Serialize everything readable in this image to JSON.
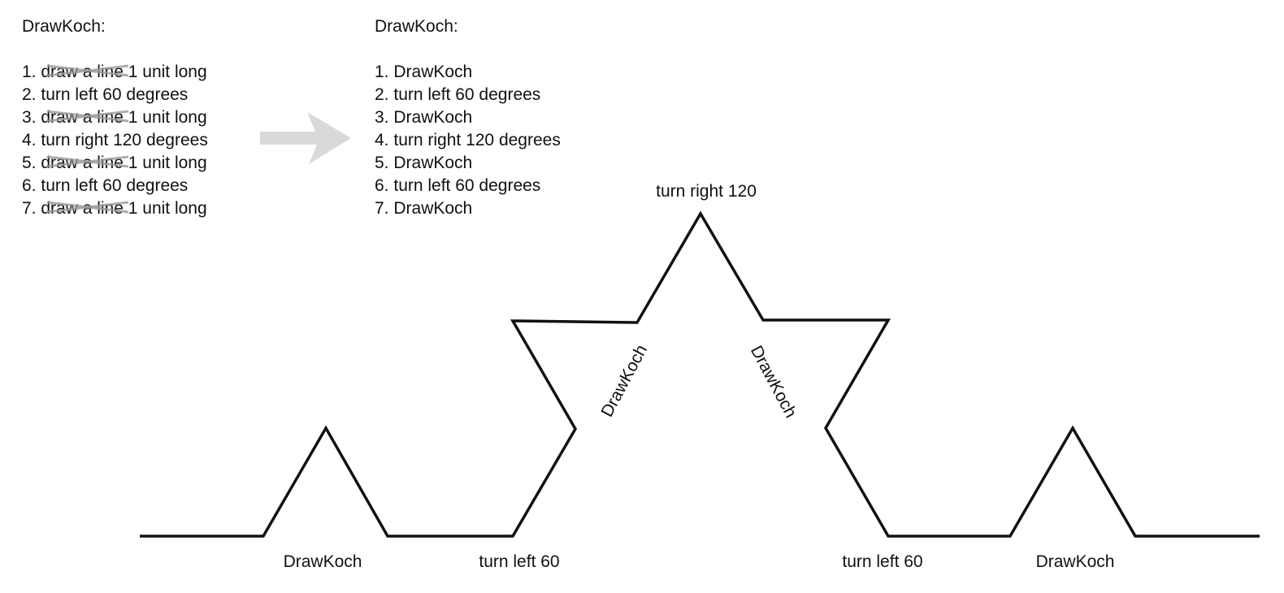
{
  "left_panel": {
    "heading": "DrawKoch:",
    "steps": [
      {
        "num": "1.",
        "text": "draw a line 1 unit long",
        "struck": true
      },
      {
        "num": "2.",
        "text": "turn left 60 degrees",
        "struck": false
      },
      {
        "num": "3.",
        "text": "draw a line 1 unit long",
        "struck": true
      },
      {
        "num": "4.",
        "text": "turn right 120 degrees",
        "struck": false
      },
      {
        "num": "5.",
        "text": "draw a line 1 unit long",
        "struck": true
      },
      {
        "num": "6.",
        "text": "turn left 60 degrees",
        "struck": false
      },
      {
        "num": "7.",
        "text": "draw a line 1 unit long",
        "struck": true
      }
    ]
  },
  "arrow": {
    "icon": "right-arrow-icon",
    "color": "#d9d9d9"
  },
  "right_panel": {
    "heading": "DrawKoch:",
    "steps": [
      {
        "num": "1.",
        "text": "DrawKoch"
      },
      {
        "num": "2.",
        "text": "turn left 60 degrees"
      },
      {
        "num": "3.",
        "text": "DrawKoch"
      },
      {
        "num": "4.",
        "text": "turn right 120 degrees"
      },
      {
        "num": "5.",
        "text": "DrawKoch"
      },
      {
        "num": "6.",
        "text": "turn left 60 degrees"
      },
      {
        "num": "7.",
        "text": "DrawKoch"
      }
    ]
  },
  "diagram": {
    "curve": "Koch curve, second iteration",
    "line_color": "#111111",
    "strike_color": "#999999",
    "labels": {
      "drawkoch_left": "DrawKoch",
      "turn_left_60_a": "turn left 60",
      "drawkoch_up": "DrawKoch",
      "turn_right_120": "turn right 120",
      "drawkoch_down": "DrawKoch",
      "turn_left_60_b": "turn left 60",
      "drawkoch_right": "DrawKoch"
    }
  }
}
